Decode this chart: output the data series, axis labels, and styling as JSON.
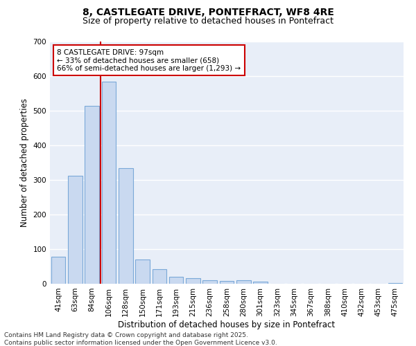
{
  "title_line1": "8, CASTLEGATE DRIVE, PONTEFRACT, WF8 4RE",
  "title_line2": "Size of property relative to detached houses in Pontefract",
  "xlabel": "Distribution of detached houses by size in Pontefract",
  "ylabel": "Number of detached properties",
  "categories": [
    "41sqm",
    "63sqm",
    "84sqm",
    "106sqm",
    "128sqm",
    "150sqm",
    "171sqm",
    "193sqm",
    "215sqm",
    "236sqm",
    "258sqm",
    "280sqm",
    "301sqm",
    "323sqm",
    "345sqm",
    "367sqm",
    "388sqm",
    "410sqm",
    "432sqm",
    "453sqm",
    "475sqm"
  ],
  "values": [
    78,
    312,
    515,
    585,
    335,
    70,
    42,
    20,
    16,
    10,
    8,
    10,
    7,
    0,
    0,
    0,
    0,
    0,
    0,
    0,
    3
  ],
  "bar_color": "#c9d9f0",
  "bar_edge_color": "#7aa8d8",
  "vline_x": 2.5,
  "vline_color": "#cc0000",
  "annotation_line1": "8 CASTLEGATE DRIVE: 97sqm",
  "annotation_line2": "← 33% of detached houses are smaller (658)",
  "annotation_line3": "66% of semi-detached houses are larger (1,293) →",
  "annotation_box_color": "#cc0000",
  "ylim": [
    0,
    700
  ],
  "yticks": [
    0,
    100,
    200,
    300,
    400,
    500,
    600,
    700
  ],
  "bg_color": "#e8eef8",
  "footer_line1": "Contains HM Land Registry data © Crown copyright and database right 2025.",
  "footer_line2": "Contains public sector information licensed under the Open Government Licence v3.0.",
  "title_fontsize": 10,
  "subtitle_fontsize": 9,
  "axis_label_fontsize": 8.5,
  "tick_fontsize": 7.5,
  "annotation_fontsize": 7.5,
  "footer_fontsize": 6.5
}
